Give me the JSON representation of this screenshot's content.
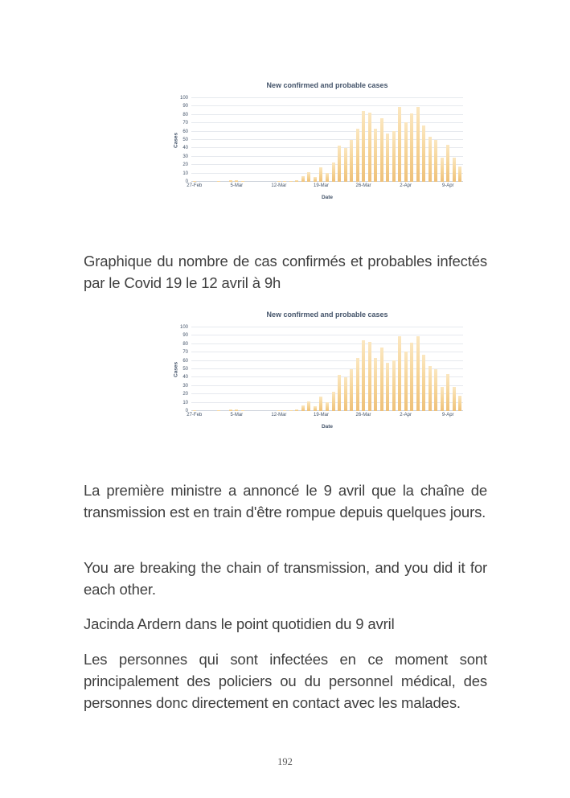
{
  "page": {
    "number": "192"
  },
  "caption": "Graphique du nombre de cas confirmés et probables infectés par le Covid 19 le 12 avril à 9h",
  "paragraphs": [
    "La première ministre a annoncé le 9 avril que la chaîne de transmission est en train d'être rompue depuis quelques jours.",
    "You are breaking the chain of transmission, and you did it for each other.",
    "Jacinda Ardern dans le point quotidien du 9 avril",
    "Les personnes qui sont infectées en ce moment sont principalement des policiers ou du personnel médical, des personnes donc directement en contact avec les malades."
  ],
  "chart_data": [
    {
      "type": "bar",
      "title": "New confirmed and probable cases",
      "xlabel": "Date",
      "ylabel": "Cases",
      "ylim": [
        0,
        100
      ],
      "grid": true,
      "legend_position": "none",
      "y_ticks": [
        0,
        10,
        20,
        30,
        40,
        50,
        60,
        70,
        80,
        90,
        100
      ],
      "x_tick_labels": [
        "27-Feb",
        "5-Mar",
        "12-Mar",
        "19-Mar",
        "26-Mar",
        "2-Apr",
        "9-Apr"
      ],
      "x_tick_indices": [
        0,
        7,
        14,
        21,
        28,
        35,
        42
      ],
      "categories": [
        "27-Feb",
        "28-Feb",
        "29-Feb",
        "1-Mar",
        "2-Mar",
        "3-Mar",
        "4-Mar",
        "5-Mar",
        "6-Mar",
        "7-Mar",
        "8-Mar",
        "9-Mar",
        "10-Mar",
        "11-Mar",
        "12-Mar",
        "13-Mar",
        "14-Mar",
        "15-Mar",
        "16-Mar",
        "17-Mar",
        "18-Mar",
        "19-Mar",
        "20-Mar",
        "21-Mar",
        "22-Mar",
        "23-Mar",
        "24-Mar",
        "25-Mar",
        "26-Mar",
        "27-Mar",
        "28-Mar",
        "29-Mar",
        "30-Mar",
        "31-Mar",
        "1-Apr",
        "2-Apr",
        "3-Apr",
        "4-Apr",
        "5-Apr",
        "6-Apr",
        "7-Apr",
        "8-Apr",
        "9-Apr",
        "10-Apr",
        "11-Apr"
      ],
      "values": [
        1,
        0,
        0,
        0,
        1,
        0,
        2,
        2,
        1,
        0,
        0,
        0,
        0,
        0,
        1,
        1,
        1,
        2,
        7,
        12,
        6,
        17,
        11,
        23,
        43,
        40,
        50,
        63,
        85,
        83,
        63,
        76,
        58,
        61,
        89,
        71,
        82,
        89,
        67,
        54,
        50,
        29,
        44,
        29,
        18
      ],
      "colors": {
        "bar_top": "#fbe7c0",
        "bar_bottom": "#eec079",
        "gridline": "#e6e9ee",
        "axis_line": "#ccd1d9",
        "text": "#44546a"
      }
    },
    {
      "type": "bar",
      "title": "New confirmed and probable cases",
      "xlabel": "Date",
      "ylabel": "Cases",
      "ylim": [
        0,
        100
      ],
      "grid": true,
      "legend_position": "none",
      "y_ticks": [
        0,
        10,
        20,
        30,
        40,
        50,
        60,
        70,
        80,
        90,
        100
      ],
      "x_tick_labels": [
        "27-Feb",
        "5-Mar",
        "12-Mar",
        "19-Mar",
        "26-Mar",
        "2-Apr",
        "9-Apr"
      ],
      "x_tick_indices": [
        0,
        7,
        14,
        21,
        28,
        35,
        42
      ],
      "categories": [
        "27-Feb",
        "28-Feb",
        "29-Feb",
        "1-Mar",
        "2-Mar",
        "3-Mar",
        "4-Mar",
        "5-Mar",
        "6-Mar",
        "7-Mar",
        "8-Mar",
        "9-Mar",
        "10-Mar",
        "11-Mar",
        "12-Mar",
        "13-Mar",
        "14-Mar",
        "15-Mar",
        "16-Mar",
        "17-Mar",
        "18-Mar",
        "19-Mar",
        "20-Mar",
        "21-Mar",
        "22-Mar",
        "23-Mar",
        "24-Mar",
        "25-Mar",
        "26-Mar",
        "27-Mar",
        "28-Mar",
        "29-Mar",
        "30-Mar",
        "31-Mar",
        "1-Apr",
        "2-Apr",
        "3-Apr",
        "4-Apr",
        "5-Apr",
        "6-Apr",
        "7-Apr",
        "8-Apr",
        "9-Apr",
        "10-Apr",
        "11-Apr"
      ],
      "values": [
        1,
        0,
        0,
        0,
        1,
        0,
        2,
        2,
        1,
        0,
        0,
        0,
        0,
        0,
        1,
        1,
        1,
        2,
        7,
        12,
        6,
        17,
        11,
        23,
        43,
        40,
        50,
        63,
        85,
        83,
        63,
        76,
        58,
        61,
        89,
        71,
        82,
        89,
        67,
        54,
        50,
        29,
        44,
        29,
        18
      ],
      "colors": {
        "bar_top": "#fbe7c0",
        "bar_bottom": "#eec079",
        "gridline": "#e6e9ee",
        "axis_line": "#ccd1d9",
        "text": "#44546a"
      }
    }
  ]
}
